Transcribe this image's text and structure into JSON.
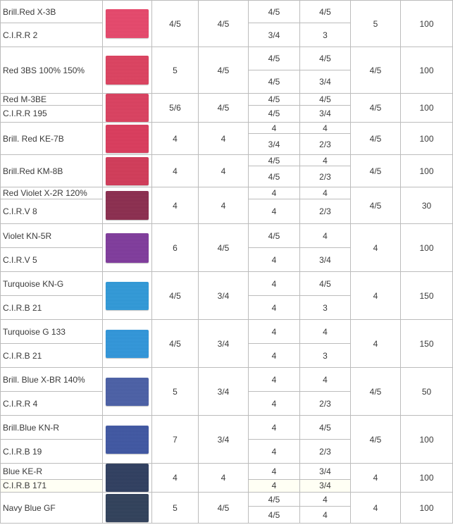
{
  "rows": [
    {
      "name1": "Brill.Red X-3B",
      "name2": "C.I.R.R 2",
      "swatch_color": "#e7476b",
      "c3": "4/5",
      "c4": "4/5",
      "c5a": "4/5",
      "c5b": "3/4",
      "c6a": "4/5",
      "c6b": "3",
      "c7": "5",
      "c8": "100"
    },
    {
      "name1": "Red 3BS 100% 150%",
      "name2": "",
      "swatch_color": "#dd415f",
      "c3": "5",
      "c4": "4/5",
      "c5a": "4/5",
      "c5b": "4/5",
      "c6a": "4/5",
      "c6b": "3/4",
      "c7": "4/5",
      "c8": "100"
    },
    {
      "name1": "Red M-3BE",
      "name2": "C.I.R.R 195",
      "swatch_color": "#db3f5f",
      "c3": "5/6",
      "c4": "4/5",
      "c5a": "4/5",
      "c5b": "4/5",
      "c6a": "4/5",
      "c6b": "3/4",
      "c7": "4/5",
      "c8": "100"
    },
    {
      "name1": "Brill. Red KE-7B",
      "name2": "",
      "swatch_color": "#db3a5c",
      "c3": "4",
      "c4": "4",
      "c5a": "4",
      "c5b": "3/4",
      "c6a": "4",
      "c6b": "2/3",
      "c7": "4/5",
      "c8": "100"
    },
    {
      "name1": "Brill.Red KM-8B",
      "name2": "",
      "swatch_color": "#d23a58",
      "c3": "4",
      "c4": "4",
      "c5a": "4/5",
      "c5b": "4/5",
      "c6a": "4",
      "c6b": "2/3",
      "c7": "4/5",
      "c8": "100"
    },
    {
      "name1": "Red Violet X-2R 120%",
      "name2": "C.I.R.V 8",
      "swatch_color": "#8b2c4e",
      "c3": "4",
      "c4": "4",
      "c5a": "4",
      "c5b": "4",
      "c6a": "4",
      "c6b": "2/3",
      "c7": "4/5",
      "c8": "30"
    },
    {
      "name1": "Violet KN-5R",
      "name2": "C.I.R.V 5",
      "swatch_color": "#7f3a9c",
      "c3": "6",
      "c4": "4/5",
      "c5a": "4/5",
      "c5b": "4",
      "c6a": "4",
      "c6b": "3/4",
      "c7": "4",
      "c8": "100"
    },
    {
      "name1": "Turquoise KN-G",
      "name2": "C.I.R.B 21",
      "swatch_color": "#2f99d8",
      "c3": "4/5",
      "c4": "3/4",
      "c5a": "4",
      "c5b": "4",
      "c6a": "4/5",
      "c6b": "3",
      "c7": "4",
      "c8": "150"
    },
    {
      "name1": "Turquoise G 133",
      "name2": "C.I.R.B 21",
      "swatch_color": "#3096da",
      "c3": "4/5",
      "c4": "3/4",
      "c5a": "4",
      "c5b": "4",
      "c6a": "4",
      "c6b": "3",
      "c7": "4",
      "c8": "150"
    },
    {
      "name1": "Brill. Blue X-BR 140%",
      "name2": "C.I.R.R 4",
      "swatch_color": "#4a5fa6",
      "c3": "5",
      "c4": "3/4",
      "c5a": "4",
      "c5b": "4",
      "c6a": "4",
      "c6b": "2/3",
      "c7": "4/5",
      "c8": "50"
    },
    {
      "name1": "Brill.Blue KN-R",
      "name2": "C.I.R.B 19",
      "swatch_color": "#3e56a2",
      "c3": "7",
      "c4": "3/4",
      "c5a": "4",
      "c5b": "4",
      "c6a": "4/5",
      "c6b": "2/3",
      "c7": "4/5",
      "c8": "100"
    },
    {
      "name1": "Blue KE-R",
      "name2": "C.I.R.B 171",
      "swatch_color": "#2e3d5f",
      "c3": "4",
      "c4": "4",
      "c5a": "4",
      "c5b": "4",
      "c6a": "3/4",
      "c6b": "3/4",
      "c7": "4",
      "c8": "100"
    },
    {
      "name1": "Navy Blue GF",
      "name2": "",
      "swatch_color": "#2f3f5a",
      "c3": "5",
      "c4": "4/5",
      "c5a": "4/5",
      "c5b": "4/5",
      "c6a": "4",
      "c6b": "4",
      "c7": "4",
      "c8": "100"
    }
  ]
}
